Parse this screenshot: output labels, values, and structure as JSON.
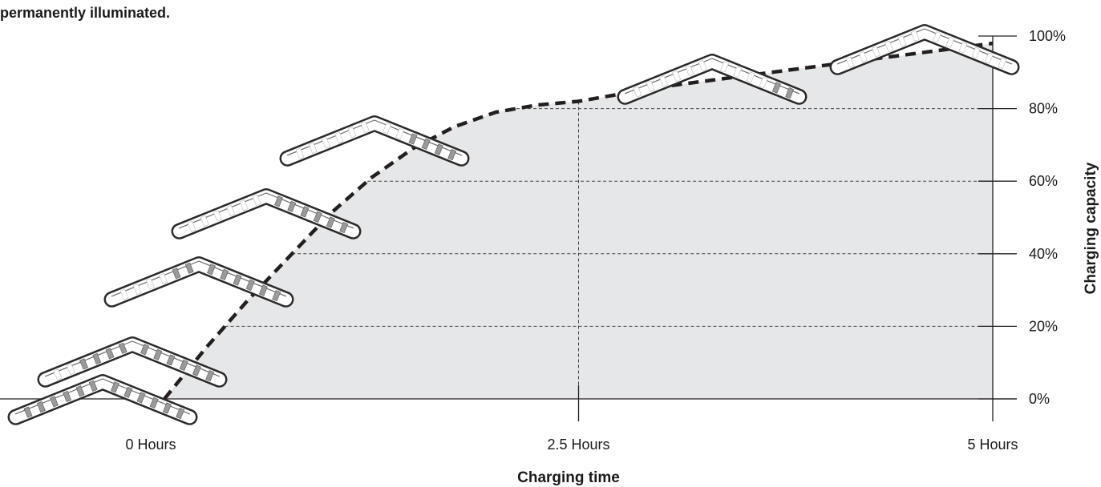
{
  "caption": "permanently illuminated.",
  "chart_data": {
    "type": "area",
    "title": "",
    "xlabel": "Charging time",
    "ylabel": "Charging capacity",
    "x_ticks": [
      {
        "value": 0,
        "label": "0 Hours"
      },
      {
        "value": 2.5,
        "label": "2.5 Hours"
      },
      {
        "value": 5,
        "label": "5 Hours"
      }
    ],
    "y_ticks": [
      {
        "value": 0,
        "label": "0%"
      },
      {
        "value": 20,
        "label": "20%"
      },
      {
        "value": 40,
        "label": "40%"
      },
      {
        "value": 60,
        "label": "60%"
      },
      {
        "value": 80,
        "label": "80%"
      },
      {
        "value": 100,
        "label": "100%"
      }
    ],
    "xlim": [
      0,
      5
    ],
    "ylim": [
      0,
      100
    ],
    "grid": "dashed horizontal lines at 20% steps, vertical dashed line at 2.5 hours",
    "series": [
      {
        "line_style": "dashed",
        "x": [
          0,
          0.25,
          0.5,
          0.75,
          1.0,
          1.25,
          1.5,
          1.75,
          2.0,
          2.25,
          2.5,
          3.0,
          3.5,
          4.0,
          4.5,
          5.0
        ],
        "y": [
          0,
          14,
          27,
          39,
          51,
          61,
          69,
          75,
          79,
          81,
          82,
          86,
          89,
          92,
          95,
          98
        ]
      }
    ],
    "indicators": [
      {
        "level": 0,
        "lit_segments": 0
      },
      {
        "level": 20,
        "lit_segments": 2
      },
      {
        "level": 40,
        "lit_segments": 4
      },
      {
        "level": 60,
        "lit_segments": 6
      },
      {
        "level": 80,
        "lit_segments": 8
      },
      {
        "level": 90,
        "lit_segments": 10
      },
      {
        "level": 100,
        "lit_segments": 12
      }
    ],
    "colors": {
      "fill": "#e6e7e8",
      "line": "#231f20",
      "segment_off": "#9a9a9a",
      "segment_on": "#ffffff"
    }
  }
}
